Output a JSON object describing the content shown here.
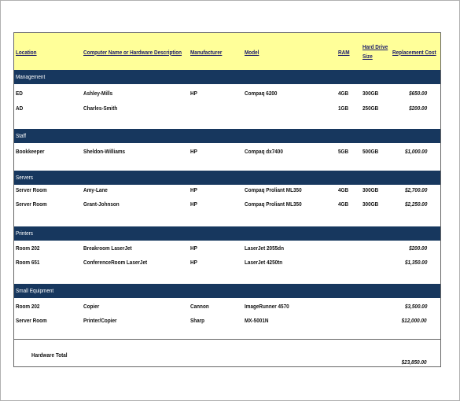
{
  "headers": {
    "location": "Location",
    "name": "Computer Name or Hardware Description",
    "manufacturer": "Manufacturer",
    "model": "Model",
    "ram": "RAM",
    "hdd_line1": "Hard Drive",
    "hdd_line2": "Size",
    "cost": "Replacement Cost"
  },
  "sections": [
    {
      "title": "Management",
      "rows": [
        {
          "location": "ED",
          "name": "Ashley-Mills",
          "manufacturer": "HP",
          "model": "Compaq 6200",
          "ram": "4GB",
          "hdd": "300GB",
          "cost": "$650.00"
        },
        {
          "location": "AD",
          "name": "Charles-Smith",
          "manufacturer": "",
          "model": "",
          "ram": "1GB",
          "hdd": "250GB",
          "cost": "$200.00"
        }
      ]
    },
    {
      "title": "Staff",
      "rows": [
        {
          "location": "Bookkeeper",
          "name": "Sheldon-Williams",
          "manufacturer": "HP",
          "model": "Compaq dx7400",
          "ram": "5GB",
          "hdd": "500GB",
          "cost": "$1,000.00"
        }
      ]
    },
    {
      "title": "Servers",
      "rows": [
        {
          "location": "Server Room",
          "name": "Amy-Lane",
          "manufacturer": "HP",
          "model": "Compaq Proliant ML350",
          "ram": "4GB",
          "hdd": "300GB",
          "cost": "$2,700.00"
        },
        {
          "location": "Server Room",
          "name": "Grant-Johnson",
          "manufacturer": "HP",
          "model": "Compaq Proliant ML350",
          "ram": "4GB",
          "hdd": "300GB",
          "cost": "$2,250.00"
        }
      ]
    },
    {
      "title": "Printers",
      "rows": [
        {
          "location": "Room 202",
          "name": "Breakroom LaserJet",
          "manufacturer": "HP",
          "model": "LaserJet 2055dn",
          "ram": "",
          "hdd": "",
          "cost": "$200.00"
        },
        {
          "location": "Room 651",
          "name": "ConferenceRoom LaserJet",
          "manufacturer": "HP",
          "model": "LaserJet 4250tn",
          "ram": "",
          "hdd": "",
          "cost": "$1,350.00"
        }
      ]
    },
    {
      "title": "Small Equipment",
      "rows": [
        {
          "location": "Room 202",
          "name": "Copier",
          "manufacturer": "Cannon",
          "model": "ImageRunner 4570",
          "ram": "",
          "hdd": "",
          "cost": "$3,500.00"
        },
        {
          "location": "Server Room",
          "name": "Printer/Copier",
          "manufacturer": "Sharp",
          "model": "MX-5001N",
          "ram": "",
          "hdd": "",
          "cost": "$12,000.00"
        }
      ]
    }
  ],
  "total": {
    "label": "Hardware Total",
    "value": "$23,850.00"
  },
  "colors": {
    "header_bg": "#ffff99",
    "section_bg": "#17375e"
  }
}
